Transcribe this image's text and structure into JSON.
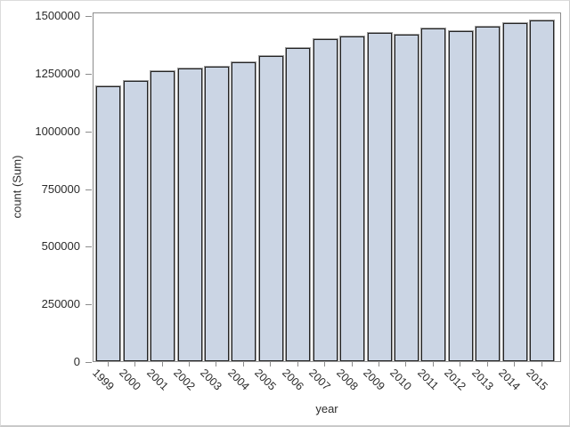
{
  "chart_data": {
    "type": "bar",
    "title": "",
    "xlabel": "year",
    "ylabel": "count (Sum)",
    "categories": [
      "1999",
      "2000",
      "2001",
      "2002",
      "2003",
      "2004",
      "2005",
      "2006",
      "2007",
      "2008",
      "2009",
      "2010",
      "2011",
      "2012",
      "2013",
      "2014",
      "2015"
    ],
    "values": [
      1190000,
      1215000,
      1256000,
      1268000,
      1278000,
      1296000,
      1323000,
      1358000,
      1394000,
      1408000,
      1424000,
      1414000,
      1442000,
      1432000,
      1450000,
      1466000,
      1477000
    ],
    "ylim": [
      0,
      1500000
    ],
    "ytick_labels": [
      "0",
      "250000",
      "500000",
      "750000",
      "1000000",
      "1250000",
      "1500000"
    ],
    "ytick_values": [
      0,
      250000,
      500000,
      750000,
      1000000,
      1250000,
      1500000
    ],
    "grid": false,
    "legend_position": "none",
    "colors": {
      "bar_fill": "#cbd5e4",
      "bar_border": "#242424",
      "bar_outer_edge": "#9b9b9b",
      "axis_line": "#8c8c8c",
      "text": "#2b2b2b"
    }
  }
}
